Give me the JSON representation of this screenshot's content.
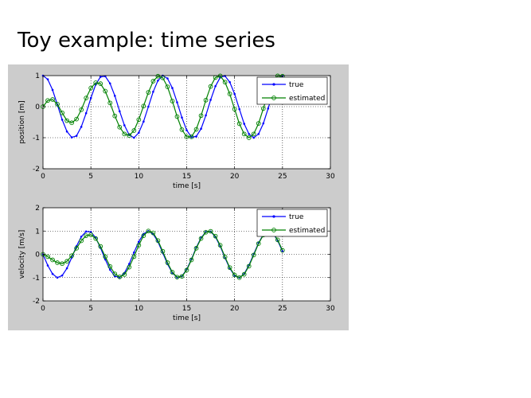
{
  "slide": {
    "title": "Toy example: time series"
  },
  "colors": {
    "true": "#0000ff",
    "estimated": "#008000",
    "figure_bg": "#cccccc"
  },
  "chart_data": [
    {
      "type": "line",
      "xlabel": "time [s]",
      "ylabel": "position [m]",
      "xlim": [
        0,
        30
      ],
      "ylim": [
        -2,
        1
      ],
      "xticks": [
        0,
        5,
        10,
        15,
        20,
        25,
        30
      ],
      "yticks": [
        -2,
        -1,
        0,
        1
      ],
      "grid": true,
      "legend_position": "top-right",
      "series": [
        {
          "name": "true",
          "marker": "dot",
          "x": [
            0,
            0.5,
            1,
            1.5,
            2,
            2.5,
            3,
            3.5,
            4,
            4.5,
            5,
            5.5,
            6,
            6.5,
            7,
            7.5,
            8,
            8.5,
            9,
            9.5,
            10,
            10.5,
            11,
            11.5,
            12,
            12.5,
            13,
            13.5,
            14,
            14.5,
            15,
            15.5,
            16,
            16.5,
            17,
            17.5,
            18,
            18.5,
            19,
            19.5,
            20,
            20.5,
            21,
            21.5,
            22,
            22.5,
            23,
            23.5,
            24,
            24.5,
            25
          ],
          "y": [
            1.0,
            0.88,
            0.54,
            0.07,
            -0.42,
            -0.8,
            -0.99,
            -0.94,
            -0.65,
            -0.21,
            0.28,
            0.71,
            0.96,
            0.98,
            0.75,
            0.35,
            -0.15,
            -0.6,
            -0.91,
            -1.0,
            -0.84,
            -0.48,
            0.0,
            0.48,
            0.84,
            1.0,
            0.91,
            0.6,
            0.14,
            -0.35,
            -0.76,
            -0.98,
            -0.96,
            -0.71,
            -0.28,
            0.22,
            0.66,
            0.94,
            0.99,
            0.79,
            0.41,
            -0.08,
            -0.55,
            -0.88,
            -1.0,
            -0.88,
            -0.54,
            -0.06,
            0.43,
            0.81,
            0.99
          ]
        },
        {
          "name": "estimated",
          "marker": "circle",
          "x": [
            0,
            0.5,
            1,
            1.5,
            2,
            2.5,
            3,
            3.5,
            4,
            4.5,
            5,
            5.5,
            6,
            6.5,
            7,
            7.5,
            8,
            8.5,
            9,
            9.5,
            10,
            10.5,
            11,
            11.5,
            12,
            12.5,
            13,
            13.5,
            14,
            14.5,
            15,
            15.5,
            16,
            16.5,
            17,
            17.5,
            18,
            18.5,
            19,
            19.5,
            20,
            20.5,
            21,
            21.5,
            22,
            22.5,
            23,
            23.5,
            24,
            24.5,
            25
          ],
          "y": [
            0.0,
            0.2,
            0.23,
            0.08,
            -0.2,
            -0.45,
            -0.52,
            -0.4,
            -0.1,
            0.28,
            0.6,
            0.77,
            0.74,
            0.5,
            0.12,
            -0.3,
            -0.66,
            -0.88,
            -0.93,
            -0.77,
            -0.42,
            0.02,
            0.46,
            0.82,
            0.98,
            0.93,
            0.64,
            0.18,
            -0.32,
            -0.74,
            -0.97,
            -0.97,
            -0.73,
            -0.29,
            0.21,
            0.65,
            0.94,
            0.99,
            0.79,
            0.41,
            -0.08,
            -0.55,
            -0.88,
            -1.0,
            -0.88,
            -0.54,
            -0.06,
            0.43,
            0.81,
            0.99,
            0.98
          ]
        }
      ]
    },
    {
      "type": "line",
      "xlabel": "time [s]",
      "ylabel": "velocity [m/s]",
      "xlim": [
        0,
        30
      ],
      "ylim": [
        -2,
        2
      ],
      "xticks": [
        0,
        5,
        10,
        15,
        20,
        25,
        30
      ],
      "yticks": [
        -2,
        -1,
        0,
        1,
        2
      ],
      "grid": true,
      "legend_position": "top-right",
      "series": [
        {
          "name": "true",
          "marker": "dot",
          "x": [
            0,
            0.5,
            1,
            1.5,
            2,
            2.5,
            3,
            3.5,
            4,
            4.5,
            5,
            5.5,
            6,
            6.5,
            7,
            7.5,
            8,
            8.5,
            9,
            9.5,
            10,
            10.5,
            11,
            11.5,
            12,
            12.5,
            13,
            13.5,
            14,
            14.5,
            15,
            15.5,
            16,
            16.5,
            17,
            17.5,
            18,
            18.5,
            19,
            19.5,
            20,
            20.5,
            21,
            21.5,
            22,
            22.5,
            23,
            23.5,
            24,
            24.5,
            25
          ],
          "y": [
            0.0,
            -0.48,
            -0.84,
            -1.0,
            -0.91,
            -0.6,
            -0.14,
            0.35,
            0.76,
            0.98,
            0.96,
            0.71,
            0.28,
            -0.22,
            -0.66,
            -0.94,
            -0.99,
            -0.8,
            -0.41,
            0.08,
            0.54,
            0.88,
            1.0,
            0.87,
            0.54,
            0.07,
            -0.42,
            -0.8,
            -0.99,
            -0.94,
            -0.65,
            -0.21,
            0.29,
            0.71,
            0.96,
            0.98,
            0.75,
            0.35,
            -0.15,
            -0.6,
            -0.91,
            -1.0,
            -0.84,
            -0.47,
            0.01,
            0.49,
            0.85,
            1.0,
            0.91,
            0.59,
            0.13
          ]
        },
        {
          "name": "estimated",
          "marker": "circle",
          "x": [
            0,
            0.5,
            1,
            1.5,
            2,
            2.5,
            3,
            3.5,
            4,
            4.5,
            5,
            5.5,
            6,
            6.5,
            7,
            7.5,
            8,
            8.5,
            9,
            9.5,
            10,
            10.5,
            11,
            11.5,
            12,
            12.5,
            13,
            13.5,
            14,
            14.5,
            15,
            15.5,
            16,
            16.5,
            17,
            17.5,
            18,
            18.5,
            19,
            19.5,
            20,
            20.5,
            21,
            21.5,
            22,
            22.5,
            23,
            23.5,
            24,
            24.5,
            25
          ],
          "y": [
            0.0,
            -0.1,
            -0.24,
            -0.36,
            -0.4,
            -0.3,
            -0.06,
            0.26,
            0.58,
            0.8,
            0.84,
            0.68,
            0.34,
            -0.1,
            -0.52,
            -0.84,
            -0.97,
            -0.87,
            -0.55,
            -0.1,
            0.39,
            0.8,
            1.0,
            0.92,
            0.59,
            0.13,
            -0.36,
            -0.77,
            -0.98,
            -0.95,
            -0.68,
            -0.24,
            0.26,
            0.68,
            0.95,
            0.99,
            0.78,
            0.39,
            -0.11,
            -0.57,
            -0.89,
            -1.0,
            -0.86,
            -0.51,
            -0.03,
            0.46,
            0.83,
            1.0,
            0.93,
            0.62,
            0.17
          ]
        }
      ]
    }
  ]
}
